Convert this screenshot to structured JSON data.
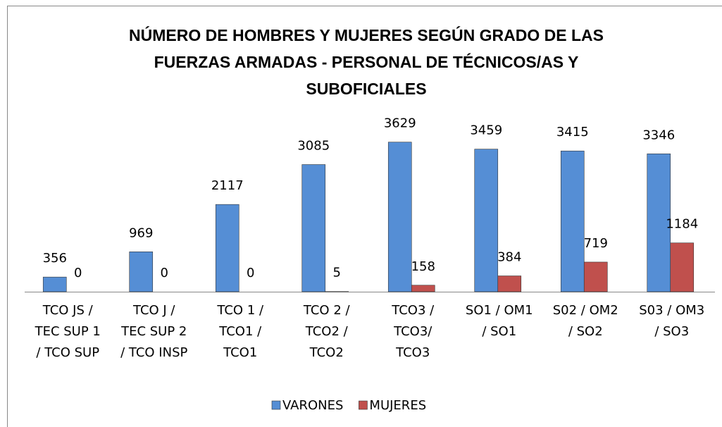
{
  "chart_data": {
    "type": "bar",
    "title": [
      "NÚMERO DE HOMBRES Y MUJERES SEGÚN GRADO DE LAS",
      "FUERZAS ARMADAS - PERSONAL DE TÉCNICOS/AS Y",
      "SUBOFICIALES"
    ],
    "categories": [
      [
        "TCO JS /",
        "TEC SUP 1",
        "/ TCO SUP"
      ],
      [
        "TCO J /",
        "TEC SUP 2",
        "/ TCO INSP"
      ],
      [
        "TCO 1 /",
        "TCO1 /",
        "TCO1"
      ],
      [
        "TCO 2 /",
        "TCO2 /",
        "TCO2"
      ],
      [
        "TCO3 /",
        "TCO3/",
        "TCO3"
      ],
      [
        "SO1 / OM1",
        "/ SO1"
      ],
      [
        "S02 / OM2",
        "/ SO2"
      ],
      [
        "S03 / OM3",
        "/ SO3"
      ]
    ],
    "series": [
      {
        "name": "VARONES",
        "color": "#558ed5",
        "values": [
          356,
          969,
          2117,
          3085,
          3629,
          3459,
          3415,
          3346
        ]
      },
      {
        "name": "MUJERES",
        "color": "#c0504d",
        "values": [
          0,
          0,
          0,
          5,
          158,
          384,
          719,
          1184
        ]
      }
    ],
    "ylim": [
      0,
      4000
    ],
    "legend": "bottom"
  }
}
